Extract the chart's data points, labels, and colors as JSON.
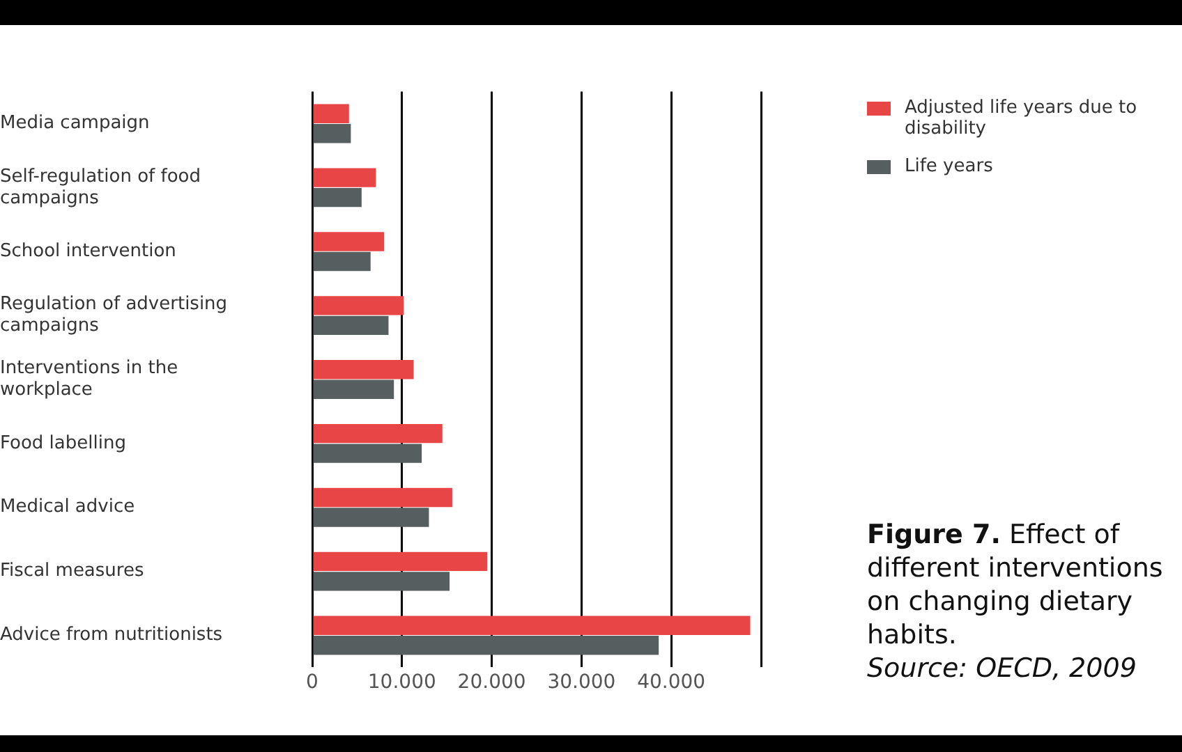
{
  "chart_data": {
    "type": "bar",
    "orientation": "horizontal",
    "title": "Figure 7.",
    "subtitle": "Effect of different interventions on changing dietary habits.",
    "annotations": [
      "Source: OECD, 2009"
    ],
    "categories": [
      "Media campaign",
      "Self-regulation of food campaigns",
      "School intervention",
      "Regulation of advertising campaigns",
      "Interventions in the workplace",
      "Food labelling",
      "Medical advice",
      "Fiscal measures",
      "Advice from nutritionists"
    ],
    "series": [
      {
        "name": "Adjusted life years due to disability",
        "color": "#e84646",
        "values": [
          4100,
          7100,
          8000,
          10200,
          11300,
          14500,
          15600,
          19500,
          48800
        ]
      },
      {
        "name": "Life years",
        "color": "#565e5f",
        "values": [
          4300,
          5500,
          6500,
          8500,
          9100,
          12200,
          13000,
          15300,
          38600
        ]
      }
    ],
    "xlim": [
      0,
      50000
    ],
    "xticks": [
      0,
      {
        "value": 10000,
        "label": "10.000"
      },
      {
        "value": 20000,
        "label": "20.000"
      },
      {
        "value": 30000,
        "label": "30.000"
      },
      {
        "value": 40000,
        "label": "40.000"
      },
      {
        "value": 50000,
        "label": null
      }
    ],
    "grid": "x",
    "legend": "right"
  }
}
